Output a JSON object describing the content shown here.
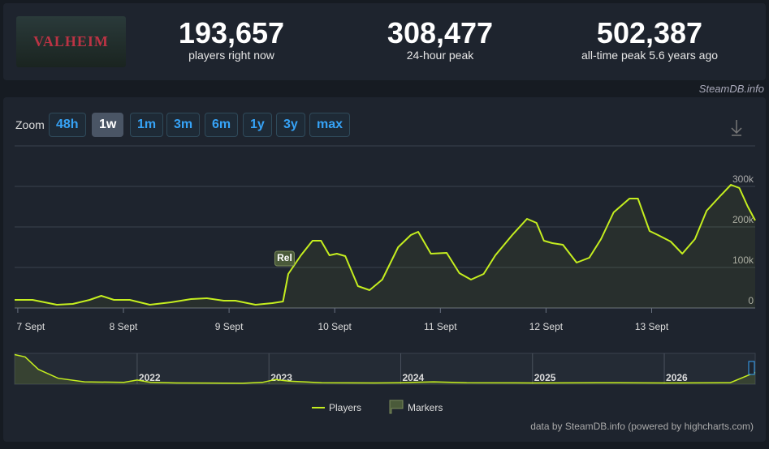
{
  "header": {
    "logo_text": "VALHEIM",
    "stats": [
      {
        "value": "193,657",
        "label": "players right now"
      },
      {
        "value": "308,477",
        "label": "24-hour peak"
      },
      {
        "value": "502,387",
        "label": "all-time peak 5.6 years ago"
      }
    ],
    "watermark": "SteamDB.info"
  },
  "zoom": {
    "label": "Zoom",
    "buttons": [
      "48h",
      "1w",
      "1m",
      "3m",
      "6m",
      "1y",
      "3y",
      "max"
    ],
    "active": 1
  },
  "chart_data": {
    "type": "line",
    "series": [
      {
        "name": "Players",
        "color": "#c5ee1f",
        "x": [
          -0.03,
          0.14,
          0.37,
          0.52,
          0.68,
          0.79,
          0.91,
          1.06,
          1.25,
          1.45,
          1.64,
          1.79,
          1.95,
          2.06,
          2.25,
          2.41,
          2.51,
          2.56,
          2.68,
          2.79,
          2.87,
          2.95,
          3.02,
          3.1,
          3.22,
          3.33,
          3.45,
          3.6,
          3.72,
          3.79,
          3.91,
          4.06,
          4.18,
          4.29,
          4.41,
          4.52,
          4.68,
          4.82,
          4.91,
          4.98,
          5.06,
          5.16,
          5.29,
          5.41,
          5.52,
          5.64,
          5.79,
          5.87,
          5.98,
          6.06,
          6.18,
          6.29,
          6.41,
          6.52,
          6.64,
          6.75,
          6.83,
          6.91,
          6.98
        ],
        "values": [
          20000,
          20000,
          8000,
          10000,
          20000,
          30000,
          20000,
          20000,
          8000,
          14000,
          22000,
          24000,
          18000,
          18000,
          8000,
          12000,
          16000,
          84000,
          130000,
          166000,
          166000,
          130000,
          134000,
          128000,
          54000,
          44000,
          70000,
          150000,
          180000,
          188000,
          134000,
          136000,
          86000,
          70000,
          84000,
          130000,
          180000,
          220000,
          210000,
          166000,
          160000,
          156000,
          112000,
          124000,
          170000,
          236000,
          270000,
          270000,
          190000,
          180000,
          164000,
          134000,
          170000,
          240000,
          274000,
          304000,
          296000,
          250000,
          216000
        ]
      }
    ],
    "marker": {
      "name": "Markers",
      "label": "Rel",
      "x": 2.51
    },
    "xlim": [
      -0.03,
      6.98
    ],
    "xticks": [
      {
        "value": 0,
        "label": "7 Sept"
      },
      {
        "value": 1,
        "label": "8 Sept"
      },
      {
        "value": 2,
        "label": "9 Sept"
      },
      {
        "value": 3,
        "label": "10 Sept"
      },
      {
        "value": 4,
        "label": "11 Sept"
      },
      {
        "value": 5,
        "label": "12 Sept"
      },
      {
        "value": 6,
        "label": "13 Sept"
      }
    ],
    "ylim": [
      0,
      400000
    ],
    "yticks": [
      {
        "value": 0,
        "label": "0"
      },
      {
        "value": 100000,
        "label": "100k"
      },
      {
        "value": 200000,
        "label": "200k"
      },
      {
        "value": 300000,
        "label": "300k"
      }
    ],
    "grid": true,
    "navigator": {
      "xlim": [
        2021.07,
        2026.69
      ],
      "ylim": [
        0,
        520000
      ],
      "xticks": [
        2022,
        2023,
        2024,
        2025,
        2026
      ],
      "x": [
        2021.07,
        2021.15,
        2021.25,
        2021.4,
        2021.6,
        2021.9,
        2022.0,
        2022.1,
        2022.3,
        2022.8,
        2022.95,
        2023.05,
        2023.15,
        2023.4,
        2023.8,
        2024.0,
        2024.25,
        2024.5,
        2025.0,
        2025.5,
        2026.0,
        2026.5,
        2026.69
      ],
      "values": [
        500000,
        460000,
        250000,
        100000,
        40000,
        30000,
        70000,
        30000,
        20000,
        15000,
        30000,
        80000,
        50000,
        25000,
        20000,
        25000,
        40000,
        25000,
        20000,
        25000,
        20000,
        25000,
        200000
      ]
    },
    "credit": "data by SteamDB.info (powered by highcharts.com)"
  }
}
